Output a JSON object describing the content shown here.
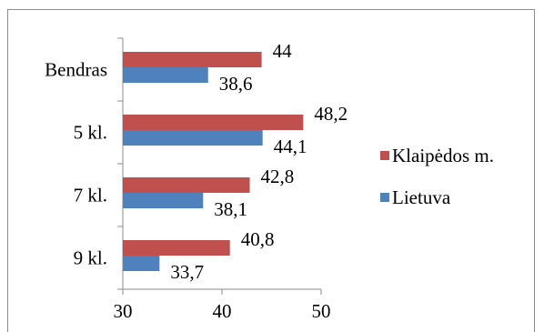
{
  "chart_data": {
    "type": "bar",
    "orientation": "horizontal",
    "categories": [
      "Bendras",
      "5 kl.",
      "7 kl.",
      "9 kl."
    ],
    "series": [
      {
        "name": "Klaipėdos m.",
        "color": "#c0504d",
        "values": [
          44,
          48.2,
          42.8,
          40.8
        ],
        "labels": [
          "44",
          "48,2",
          "42,8",
          "40,8"
        ]
      },
      {
        "name": "Lietuva",
        "color": "#4f81bd",
        "values": [
          38.6,
          44.1,
          38.1,
          33.7
        ],
        "labels": [
          "38,6",
          "44,1",
          "38,1",
          "33,7"
        ]
      }
    ],
    "xlim": [
      30,
      50
    ],
    "xticks": [
      30,
      40,
      50
    ],
    "xtick_labels": [
      "30",
      "40",
      "50"
    ],
    "legend_position": "right",
    "grid": false
  }
}
